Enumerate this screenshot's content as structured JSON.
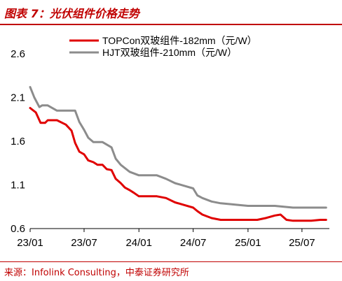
{
  "title": "图表 7：光伏组件价格走势",
  "source": "来源：Infolink Consulting，中泰证券研究所",
  "chart_data": {
    "type": "line",
    "title": "",
    "xlabel": "",
    "ylabel": "",
    "ylim": [
      0.6,
      2.6
    ],
    "yticks": [
      0.6,
      1.1,
      1.6,
      2.1,
      2.6
    ],
    "ytick_labels": [
      "0.6",
      "1.1",
      "1.6",
      "2.1",
      "2.6"
    ],
    "xlim": [
      "2023-01",
      "2025-10"
    ],
    "xticks": [
      "23/01",
      "23/07",
      "24/01",
      "24/07",
      "25/01",
      "25/07"
    ],
    "legend_position": "top",
    "series": [
      {
        "name": "TOPCon双玻组件-182mm（元/W）",
        "color": "#e00000",
        "points": [
          [
            "2023-01-01",
            1.98
          ],
          [
            "2023-01-20",
            1.93
          ],
          [
            "2023-02-05",
            1.81
          ],
          [
            "2023-02-20",
            1.81
          ],
          [
            "2023-03-01",
            1.84
          ],
          [
            "2023-04-01",
            1.84
          ],
          [
            "2023-05-01",
            1.79
          ],
          [
            "2023-05-20",
            1.72
          ],
          [
            "2023-06-01",
            1.58
          ],
          [
            "2023-06-15",
            1.48
          ],
          [
            "2023-07-01",
            1.45
          ],
          [
            "2023-07-15",
            1.38
          ],
          [
            "2023-08-01",
            1.36
          ],
          [
            "2023-08-15",
            1.33
          ],
          [
            "2023-09-01",
            1.33
          ],
          [
            "2023-09-15",
            1.28
          ],
          [
            "2023-10-01",
            1.27
          ],
          [
            "2023-10-15",
            1.17
          ],
          [
            "2023-11-01",
            1.12
          ],
          [
            "2023-11-15",
            1.07
          ],
          [
            "2023-12-01",
            1.04
          ],
          [
            "2023-12-15",
            1.01
          ],
          [
            "2024-01-01",
            0.97
          ],
          [
            "2024-02-01",
            0.97
          ],
          [
            "2024-03-01",
            0.97
          ],
          [
            "2024-04-01",
            0.95
          ],
          [
            "2024-05-01",
            0.9
          ],
          [
            "2024-06-01",
            0.87
          ],
          [
            "2024-07-01",
            0.84
          ],
          [
            "2024-07-15",
            0.8
          ],
          [
            "2024-08-01",
            0.76
          ],
          [
            "2024-09-01",
            0.72
          ],
          [
            "2024-10-01",
            0.7
          ],
          [
            "2024-11-01",
            0.7
          ],
          [
            "2024-12-01",
            0.7
          ],
          [
            "2025-01-01",
            0.7
          ],
          [
            "2025-02-01",
            0.7
          ],
          [
            "2025-03-01",
            0.72
          ],
          [
            "2025-04-01",
            0.75
          ],
          [
            "2025-04-20",
            0.76
          ],
          [
            "2025-05-10",
            0.7
          ],
          [
            "2025-06-01",
            0.69
          ],
          [
            "2025-07-01",
            0.69
          ],
          [
            "2025-08-01",
            0.69
          ],
          [
            "2025-09-01",
            0.7
          ],
          [
            "2025-09-20",
            0.7
          ]
        ]
      },
      {
        "name": "HJT双玻组件-210mm（元/W）",
        "color": "#8c8c8c",
        "points": [
          [
            "2023-01-01",
            2.22
          ],
          [
            "2023-01-15",
            2.1
          ],
          [
            "2023-02-01",
            1.99
          ],
          [
            "2023-02-10",
            2.01
          ],
          [
            "2023-03-01",
            2.01
          ],
          [
            "2023-04-01",
            1.95
          ],
          [
            "2023-05-01",
            1.95
          ],
          [
            "2023-06-01",
            1.95
          ],
          [
            "2023-06-15",
            1.82
          ],
          [
            "2023-07-01",
            1.73
          ],
          [
            "2023-07-15",
            1.64
          ],
          [
            "2023-08-01",
            1.59
          ],
          [
            "2023-09-01",
            1.59
          ],
          [
            "2023-10-01",
            1.53
          ],
          [
            "2023-10-15",
            1.4
          ],
          [
            "2023-11-01",
            1.33
          ],
          [
            "2023-12-01",
            1.25
          ],
          [
            "2024-01-01",
            1.21
          ],
          [
            "2024-02-01",
            1.21
          ],
          [
            "2024-03-01",
            1.21
          ],
          [
            "2024-04-01",
            1.17
          ],
          [
            "2024-05-01",
            1.12
          ],
          [
            "2024-06-01",
            1.09
          ],
          [
            "2024-07-01",
            1.06
          ],
          [
            "2024-07-15",
            0.98
          ],
          [
            "2024-08-01",
            0.95
          ],
          [
            "2024-09-01",
            0.91
          ],
          [
            "2024-10-01",
            0.89
          ],
          [
            "2024-11-01",
            0.88
          ],
          [
            "2024-12-01",
            0.87
          ],
          [
            "2025-01-01",
            0.86
          ],
          [
            "2025-02-01",
            0.86
          ],
          [
            "2025-03-01",
            0.86
          ],
          [
            "2025-04-01",
            0.86
          ],
          [
            "2025-05-01",
            0.85
          ],
          [
            "2025-06-01",
            0.84
          ],
          [
            "2025-07-01",
            0.84
          ],
          [
            "2025-08-01",
            0.84
          ],
          [
            "2025-09-01",
            0.84
          ],
          [
            "2025-09-20",
            0.84
          ]
        ]
      }
    ]
  }
}
